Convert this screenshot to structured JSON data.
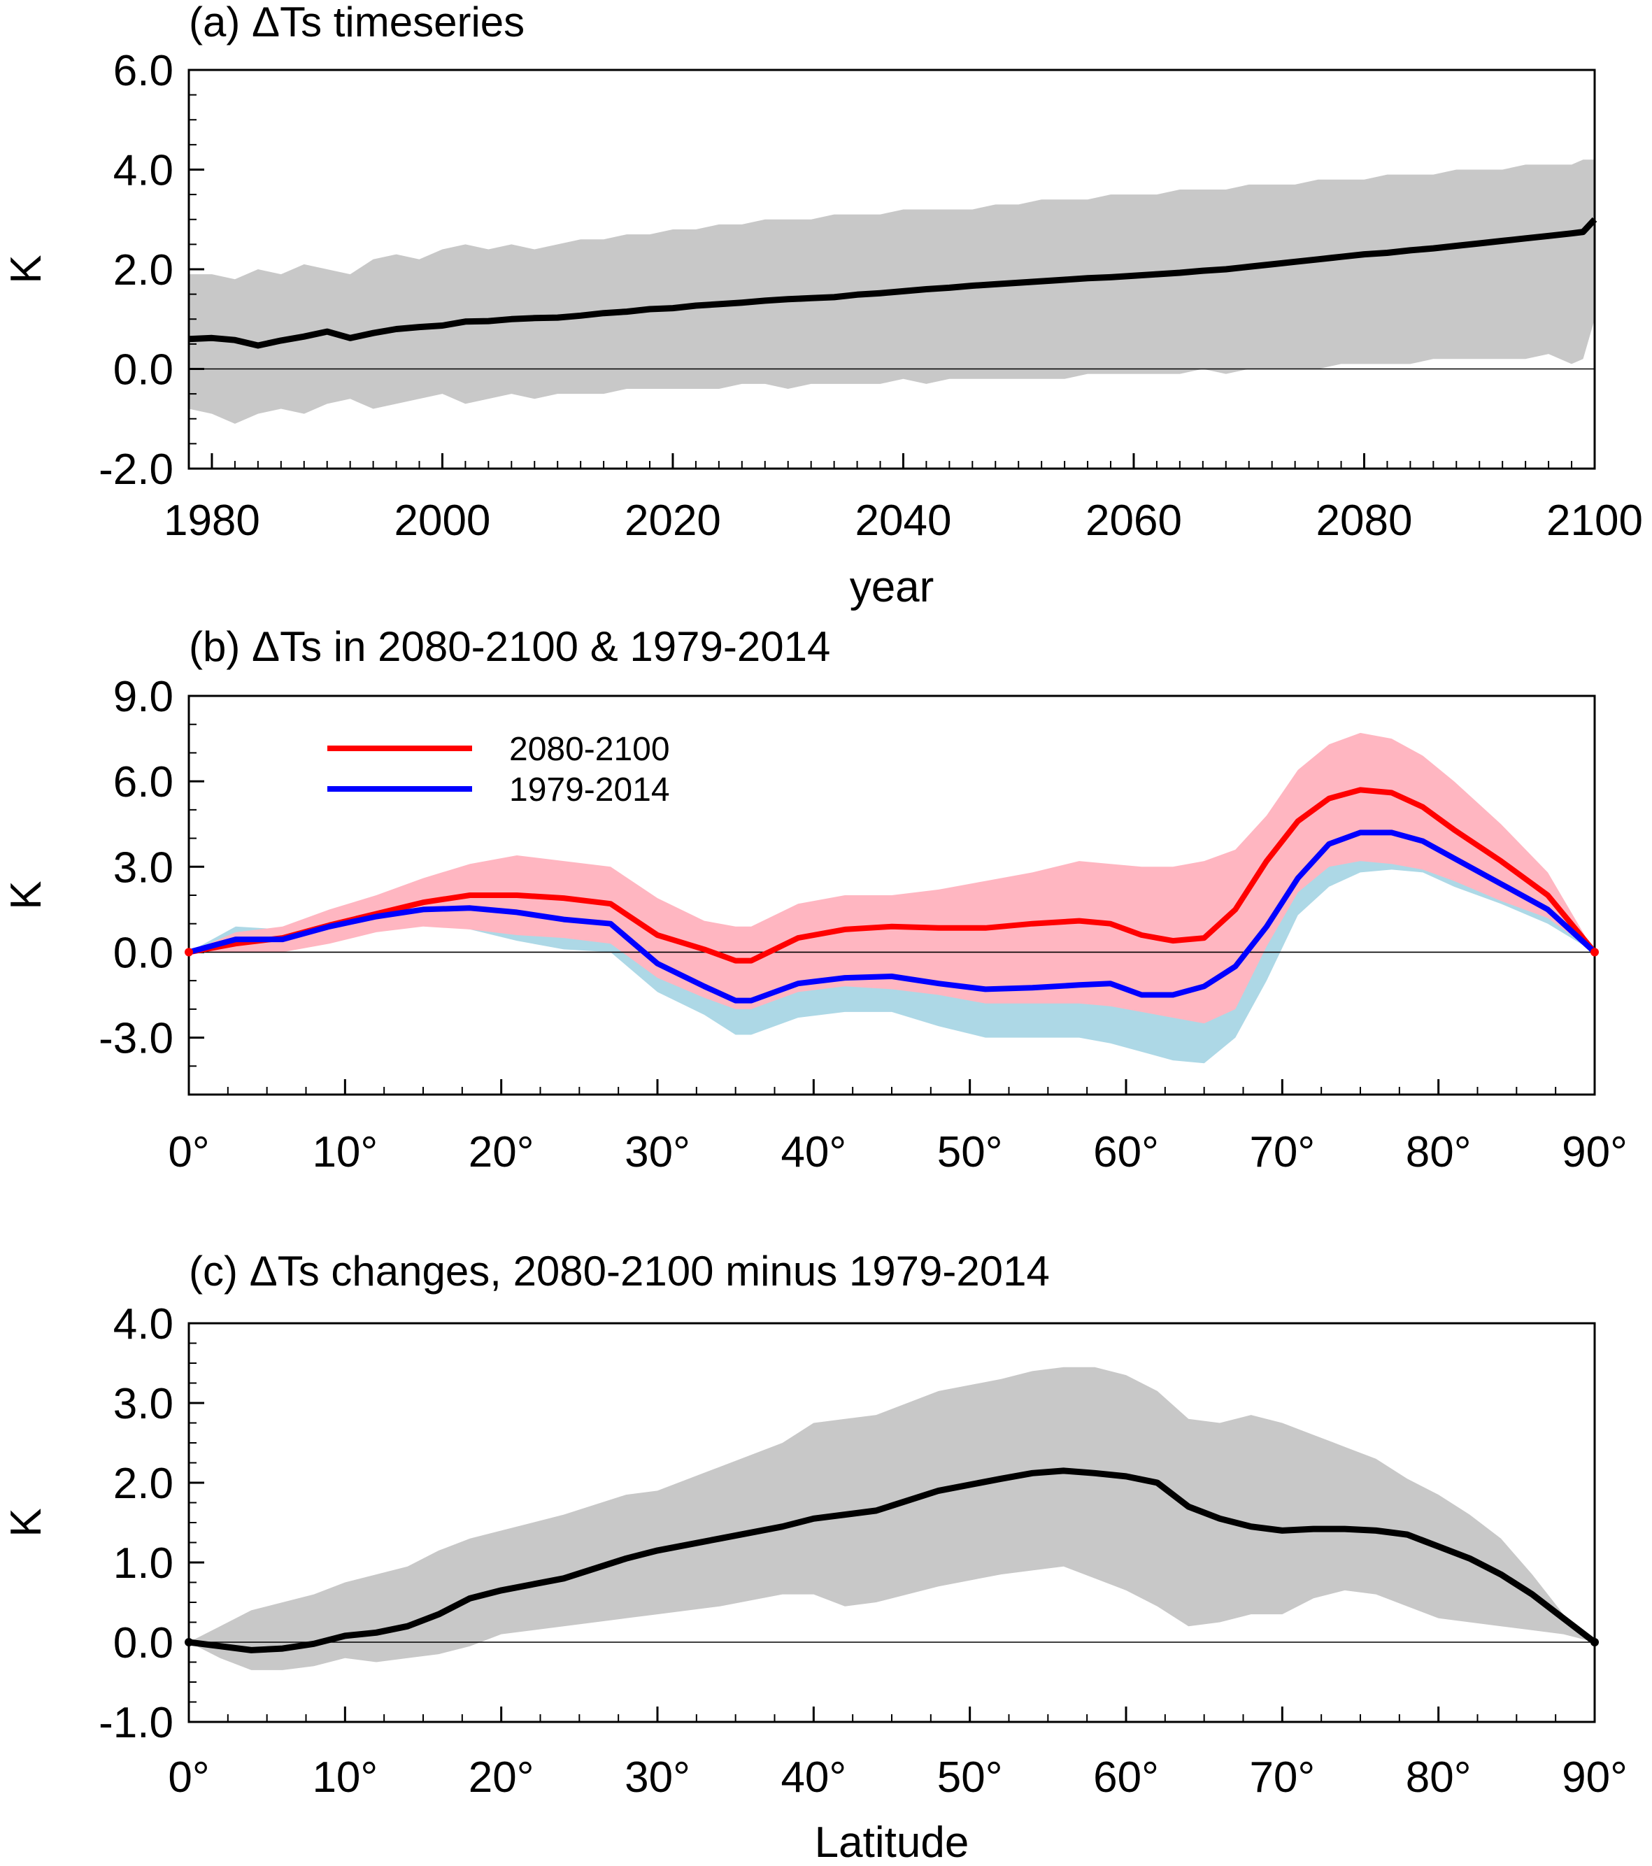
{
  "chart_data": [
    {
      "type": "line",
      "panel": "a",
      "title": "(a) ΔTs timeseries",
      "xlabel": "year",
      "ylabel": "K",
      "xlim": [
        1978,
        2100
      ],
      "ylim": [
        -2.0,
        6.0
      ],
      "xticks": [
        1980,
        2000,
        2020,
        2040,
        2060,
        2080,
        2100
      ],
      "xtick_labels": [
        "1980",
        "2000",
        "2020",
        "2040",
        "2060",
        "2080",
        "2100"
      ],
      "yticks": [
        -2.0,
        0.0,
        2.0,
        4.0,
        6.0
      ],
      "ytick_labels": [
        "-2.0",
        "0.0",
        "2.0",
        "4.0",
        "6.0"
      ],
      "zero_line": true,
      "mean": {
        "x": [
          1978,
          1980,
          1982,
          1984,
          1986,
          1988,
          1990,
          1992,
          1994,
          1996,
          1998,
          2000,
          2002,
          2004,
          2006,
          2008,
          2010,
          2012,
          2014,
          2016,
          2018,
          2020,
          2022,
          2024,
          2026,
          2028,
          2030,
          2032,
          2034,
          2036,
          2038,
          2040,
          2042,
          2044,
          2046,
          2048,
          2050,
          2052,
          2054,
          2056,
          2058,
          2060,
          2062,
          2064,
          2066,
          2068,
          2070,
          2072,
          2074,
          2076,
          2078,
          2080,
          2082,
          2084,
          2086,
          2088,
          2090,
          2092,
          2094,
          2096,
          2098,
          2099,
          2100
        ],
        "y": [
          0.6,
          0.62,
          0.58,
          0.47,
          0.57,
          0.65,
          0.75,
          0.62,
          0.72,
          0.8,
          0.84,
          0.87,
          0.95,
          0.96,
          1.0,
          1.02,
          1.03,
          1.07,
          1.12,
          1.15,
          1.2,
          1.22,
          1.27,
          1.3,
          1.33,
          1.37,
          1.4,
          1.42,
          1.44,
          1.49,
          1.52,
          1.56,
          1.6,
          1.63,
          1.67,
          1.7,
          1.73,
          1.76,
          1.79,
          1.82,
          1.84,
          1.87,
          1.9,
          1.93,
          1.97,
          2.0,
          2.05,
          2.1,
          2.15,
          2.2,
          2.25,
          2.3,
          2.33,
          2.38,
          2.42,
          2.47,
          2.52,
          2.57,
          2.62,
          2.67,
          2.72,
          2.75,
          3.0
        ]
      },
      "range_upper": [
        1.9,
        1.9,
        1.8,
        2.0,
        1.9,
        2.1,
        2.0,
        1.9,
        2.2,
        2.3,
        2.2,
        2.4,
        2.5,
        2.4,
        2.5,
        2.4,
        2.5,
        2.6,
        2.6,
        2.7,
        2.7,
        2.8,
        2.8,
        2.9,
        2.9,
        3.0,
        3.0,
        3.0,
        3.1,
        3.1,
        3.1,
        3.2,
        3.2,
        3.2,
        3.2,
        3.3,
        3.3,
        3.4,
        3.4,
        3.4,
        3.5,
        3.5,
        3.5,
        3.6,
        3.6,
        3.6,
        3.7,
        3.7,
        3.7,
        3.8,
        3.8,
        3.8,
        3.9,
        3.9,
        3.9,
        4.0,
        4.0,
        4.0,
        4.1,
        4.1,
        4.1,
        4.2,
        4.2
      ],
      "range_lower": [
        -0.8,
        -0.9,
        -1.1,
        -0.9,
        -0.8,
        -0.9,
        -0.7,
        -0.6,
        -0.8,
        -0.7,
        -0.6,
        -0.5,
        -0.7,
        -0.6,
        -0.5,
        -0.6,
        -0.5,
        -0.5,
        -0.5,
        -0.4,
        -0.4,
        -0.4,
        -0.4,
        -0.4,
        -0.3,
        -0.3,
        -0.4,
        -0.3,
        -0.3,
        -0.3,
        -0.3,
        -0.2,
        -0.3,
        -0.2,
        -0.2,
        -0.2,
        -0.2,
        -0.2,
        -0.2,
        -0.1,
        -0.1,
        -0.1,
        -0.1,
        -0.1,
        0.0,
        -0.1,
        0.0,
        0.0,
        0.0,
        0.0,
        0.1,
        0.1,
        0.1,
        0.1,
        0.2,
        0.2,
        0.2,
        0.2,
        0.2,
        0.3,
        0.1,
        0.2,
        1.0
      ]
    },
    {
      "type": "line",
      "panel": "b",
      "title": "(b) ΔTs in 2080-2100 & 1979-2014",
      "xlabel": "",
      "ylabel": "K",
      "xlim": [
        0,
        90
      ],
      "ylim": [
        -5.0,
        9.0
      ],
      "xticks": [
        0,
        10,
        20,
        30,
        40,
        50,
        60,
        70,
        80,
        90
      ],
      "xtick_labels": [
        "0°",
        "10°",
        "20°",
        "30°",
        "40°",
        "50°",
        "60°",
        "70°",
        "80°",
        "90°"
      ],
      "yticks": [
        -3.0,
        0.0,
        3.0,
        6.0,
        9.0
      ],
      "ytick_labels": [
        "-3.0",
        "0.0",
        "3.0",
        "6.0",
        "9.0"
      ],
      "zero_line": true,
      "legend": {
        "position": "top-left",
        "entries": [
          "2080-2100",
          "1979-2014"
        ]
      },
      "x": [
        0,
        3,
        6,
        9,
        12,
        15,
        18,
        21,
        24,
        27,
        30,
        33,
        35,
        36,
        39,
        42,
        45,
        48,
        51,
        54,
        57,
        59,
        61,
        63,
        65,
        67,
        69,
        71,
        73,
        75,
        77,
        79,
        81,
        84,
        87,
        90
      ],
      "series": [
        {
          "name": "2080-2100",
          "color": "#ff0000",
          "band_color": "#ffb6c1",
          "values": [
            0.0,
            0.3,
            0.5,
            0.95,
            1.35,
            1.75,
            2.0,
            2.0,
            1.9,
            1.7,
            0.6,
            0.1,
            -0.3,
            -0.3,
            0.5,
            0.8,
            0.9,
            0.85,
            0.85,
            1.0,
            1.1,
            1.0,
            0.6,
            0.4,
            0.5,
            1.5,
            3.2,
            4.6,
            5.4,
            5.7,
            5.6,
            5.1,
            4.3,
            3.2,
            2.0,
            0.0
          ],
          "upper": [
            0.0,
            0.7,
            0.9,
            1.5,
            2.0,
            2.6,
            3.1,
            3.4,
            3.2,
            3.0,
            1.9,
            1.1,
            0.9,
            0.9,
            1.7,
            2.0,
            2.0,
            2.2,
            2.5,
            2.8,
            3.2,
            3.1,
            3.0,
            3.0,
            3.2,
            3.6,
            4.8,
            6.4,
            7.3,
            7.7,
            7.5,
            6.9,
            6.0,
            4.5,
            2.8,
            0.0
          ],
          "lower": [
            0.0,
            0.0,
            0.0,
            0.3,
            0.7,
            0.9,
            0.8,
            0.6,
            0.5,
            0.3,
            -0.9,
            -1.6,
            -2.0,
            -2.0,
            -1.4,
            -1.2,
            -1.3,
            -1.5,
            -1.8,
            -1.8,
            -1.8,
            -1.9,
            -2.1,
            -2.3,
            -2.5,
            -2.0,
            0.2,
            2.1,
            3.0,
            3.2,
            3.1,
            2.9,
            2.5,
            1.8,
            1.2,
            0.0
          ]
        },
        {
          "name": "1979-2014",
          "color": "#0000ff",
          "band_color": "#add8e6",
          "values": [
            0.0,
            0.45,
            0.45,
            0.9,
            1.25,
            1.5,
            1.55,
            1.4,
            1.15,
            1.0,
            -0.4,
            -1.2,
            -1.7,
            -1.7,
            -1.1,
            -0.9,
            -0.85,
            -1.1,
            -1.3,
            -1.25,
            -1.15,
            -1.1,
            -1.5,
            -1.5,
            -1.2,
            -0.5,
            0.9,
            2.6,
            3.8,
            4.2,
            4.2,
            3.9,
            3.3,
            2.4,
            1.5,
            0.0
          ],
          "upper": [
            0.0,
            0.9,
            0.8,
            1.2,
            1.5,
            1.6,
            1.7,
            1.6,
            1.4,
            1.3,
            0.2,
            -0.5,
            -0.8,
            -0.8,
            -0.3,
            -0.2,
            -0.2,
            -0.4,
            -0.5,
            -0.4,
            -0.3,
            -0.3,
            -0.5,
            -0.7,
            -0.5,
            0.0,
            1.6,
            3.2,
            4.2,
            4.6,
            4.5,
            4.2,
            3.6,
            2.6,
            1.7,
            0.0
          ],
          "lower": [
            0.0,
            0.1,
            0.1,
            0.5,
            0.9,
            1.0,
            0.8,
            0.4,
            0.1,
            0.0,
            -1.4,
            -2.2,
            -2.9,
            -2.9,
            -2.3,
            -2.1,
            -2.1,
            -2.6,
            -3.0,
            -3.0,
            -3.0,
            -3.2,
            -3.5,
            -3.8,
            -3.9,
            -3.0,
            -1.0,
            1.3,
            2.3,
            2.8,
            2.9,
            2.8,
            2.3,
            1.7,
            1.0,
            0.0
          ]
        }
      ]
    },
    {
      "type": "line",
      "panel": "c",
      "title": "(c) ΔTs changes, 2080-2100 minus 1979-2014",
      "xlabel": "Latitude",
      "ylabel": "K",
      "xlim": [
        0,
        90
      ],
      "ylim": [
        -1.0,
        4.0
      ],
      "xticks": [
        0,
        10,
        20,
        30,
        40,
        50,
        60,
        70,
        80,
        90
      ],
      "xtick_labels": [
        "0°",
        "10°",
        "20°",
        "30°",
        "40°",
        "50°",
        "60°",
        "70°",
        "80°",
        "90°"
      ],
      "yticks": [
        -1.0,
        0.0,
        1.0,
        2.0,
        3.0,
        4.0
      ],
      "ytick_labels": [
        "-1.0",
        "0.0",
        "1.0",
        "2.0",
        "3.0",
        "4.0"
      ],
      "zero_line": true,
      "x": [
        0,
        2,
        4,
        6,
        8,
        10,
        12,
        14,
        16,
        18,
        20,
        24,
        28,
        30,
        34,
        38,
        40,
        42,
        44,
        48,
        52,
        54,
        56,
        58,
        60,
        62,
        64,
        66,
        68,
        70,
        72,
        74,
        76,
        78,
        80,
        82,
        84,
        86,
        88,
        90
      ],
      "mean": [
        0.0,
        -0.05,
        -0.1,
        -0.08,
        -0.02,
        0.08,
        0.12,
        0.2,
        0.35,
        0.55,
        0.65,
        0.8,
        1.05,
        1.15,
        1.3,
        1.45,
        1.55,
        1.6,
        1.65,
        1.9,
        2.05,
        2.12,
        2.15,
        2.12,
        2.08,
        2.0,
        1.7,
        1.55,
        1.45,
        1.4,
        1.42,
        1.42,
        1.4,
        1.35,
        1.2,
        1.05,
        0.85,
        0.6,
        0.3,
        0.0
      ],
      "upper": [
        0.0,
        0.2,
        0.4,
        0.5,
        0.6,
        0.75,
        0.85,
        0.95,
        1.15,
        1.3,
        1.4,
        1.6,
        1.85,
        1.9,
        2.2,
        2.5,
        2.75,
        2.8,
        2.85,
        3.15,
        3.3,
        3.4,
        3.45,
        3.45,
        3.35,
        3.15,
        2.8,
        2.75,
        2.85,
        2.75,
        2.6,
        2.45,
        2.3,
        2.05,
        1.85,
        1.6,
        1.3,
        0.85,
        0.35,
        0.0
      ],
      "lower": [
        0.0,
        -0.2,
        -0.35,
        -0.35,
        -0.3,
        -0.2,
        -0.25,
        -0.2,
        -0.15,
        -0.05,
        0.1,
        0.2,
        0.3,
        0.35,
        0.45,
        0.6,
        0.6,
        0.45,
        0.5,
        0.7,
        0.85,
        0.9,
        0.95,
        0.8,
        0.65,
        0.45,
        0.2,
        0.25,
        0.35,
        0.35,
        0.55,
        0.65,
        0.6,
        0.45,
        0.3,
        0.25,
        0.2,
        0.15,
        0.1,
        0.0
      ]
    }
  ]
}
